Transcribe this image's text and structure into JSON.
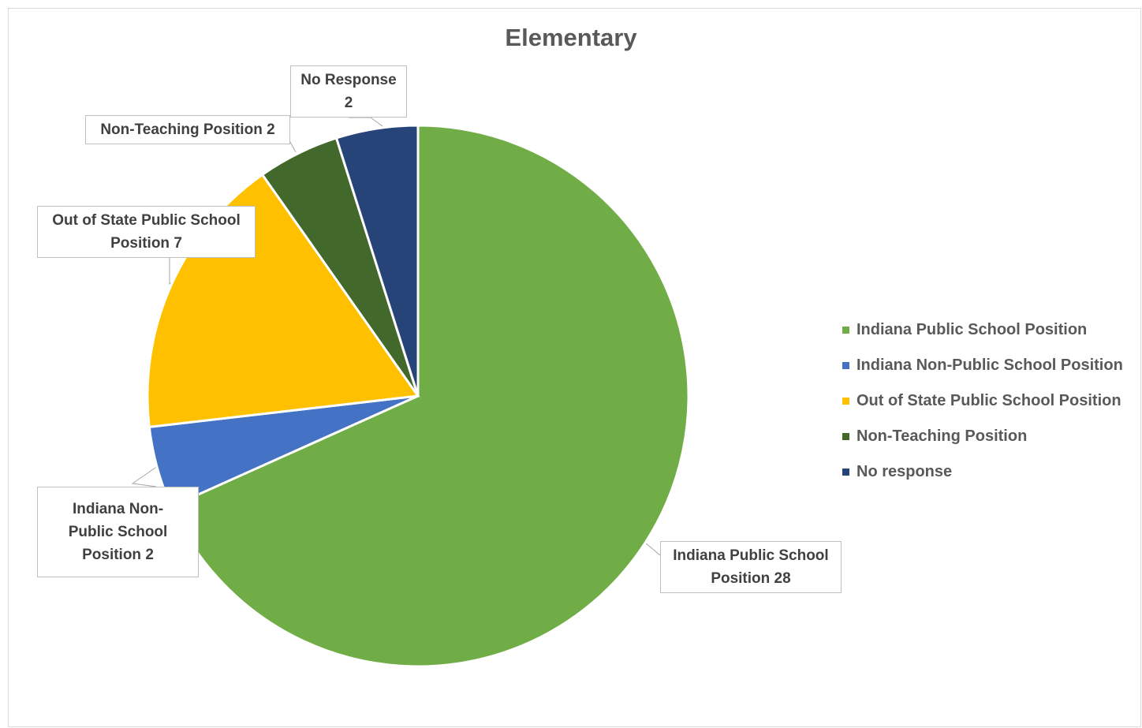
{
  "chart_data": {
    "type": "pie",
    "title": "Elementary",
    "slices": [
      {
        "name": "Indiana Public School Position",
        "value": 28,
        "color": "#70AD47",
        "label": "Indiana Public School\nPosition 28"
      },
      {
        "name": "Indiana Non-Public School Position",
        "value": 2,
        "color": "#4472C4",
        "label": "Indiana Non-\nPublic School\nPosition 2"
      },
      {
        "name": "Out of State Public School Position",
        "value": 7,
        "color": "#FFC000",
        "label": "Out of State Public School\nPosition 7"
      },
      {
        "name": "Non-Teaching Position",
        "value": 2,
        "color": "#43682B",
        "label": "Non-Teaching Position 2"
      },
      {
        "name": "No response",
        "value": 2,
        "color": "#264478",
        "label": "No Response\n2"
      }
    ],
    "legend_position": "right"
  }
}
